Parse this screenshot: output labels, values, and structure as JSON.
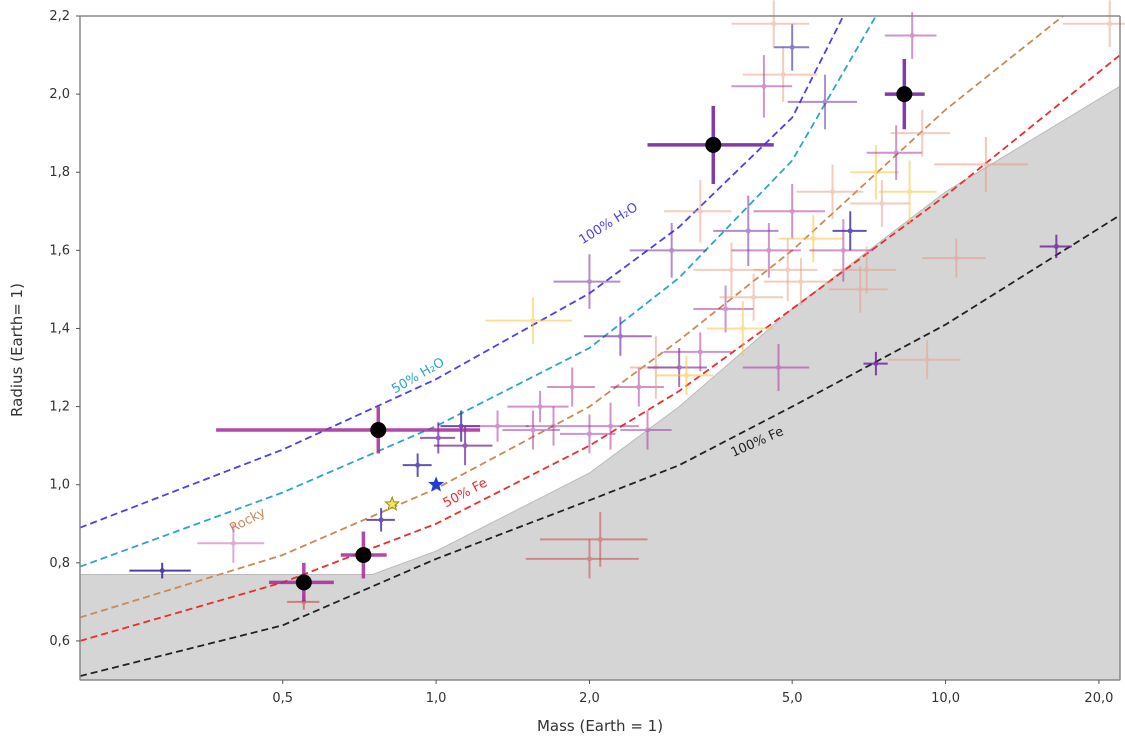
{
  "chart_data": {
    "type": "scatter",
    "xlabel": "Mass (Earth = 1)",
    "ylabel": "Radius (Earth= 1)",
    "xscale": "log",
    "xlim": [
      0.2,
      22
    ],
    "ylim": [
      0.5,
      2.2
    ],
    "xticks": [
      0.5,
      1.0,
      2.0,
      5.0,
      10.0,
      20.0
    ],
    "xtick_labels": [
      "0,5",
      "1,0",
      "2,0",
      "5,0",
      "10,0",
      "20,0"
    ],
    "yticks": [
      0.6,
      0.8,
      1.0,
      1.2,
      1.4,
      1.6,
      1.8,
      2.0,
      2.2
    ],
    "ytick_labels": [
      "0,6",
      "0,8",
      "1,0",
      "1,2",
      "1,4",
      "1,6",
      "1,8",
      "2,0",
      "2,2"
    ],
    "curves": [
      {
        "label": "100% H₂O",
        "color": "#4b3ff0",
        "points": [
          [
            0.2,
            0.89
          ],
          [
            0.5,
            1.09
          ],
          [
            1.0,
            1.27
          ],
          [
            2.0,
            1.49
          ],
          [
            3.0,
            1.66
          ],
          [
            5.0,
            1.94
          ],
          [
            6.3,
            2.2
          ]
        ],
        "label_at": [
          2.2,
          1.66
        ],
        "label_rot": -32
      },
      {
        "label": "50% H₂O",
        "color": "#2ba6c4",
        "points": [
          [
            0.2,
            0.79
          ],
          [
            0.5,
            0.98
          ],
          [
            1.0,
            1.15
          ],
          [
            2.0,
            1.35
          ],
          [
            3.0,
            1.53
          ],
          [
            5.0,
            1.83
          ],
          [
            7.3,
            2.2
          ]
        ],
        "label_at": [
          0.93,
          1.27
        ],
        "label_rot": -30
      },
      {
        "label": "Rocky",
        "color": "#c98a55",
        "points": [
          [
            0.2,
            0.66
          ],
          [
            0.5,
            0.82
          ],
          [
            1.0,
            0.99
          ],
          [
            2.0,
            1.2
          ],
          [
            3.0,
            1.37
          ],
          [
            5.0,
            1.6
          ],
          [
            10.0,
            1.96
          ],
          [
            17.0,
            2.2
          ]
        ],
        "label_at": [
          0.43,
          0.9
        ],
        "label_rot": -28
      },
      {
        "label": "50% Fe",
        "color": "#ef2b2b",
        "points": [
          [
            0.2,
            0.6
          ],
          [
            0.5,
            0.75
          ],
          [
            1.0,
            0.9
          ],
          [
            2.0,
            1.1
          ],
          [
            3.0,
            1.24
          ],
          [
            5.0,
            1.45
          ],
          [
            10.0,
            1.74
          ],
          [
            22.0,
            2.1
          ]
        ],
        "label_at": [
          1.15,
          0.97
        ],
        "label_rot": -28
      },
      {
        "label": "100% Fe",
        "color": "#222222",
        "points": [
          [
            0.2,
            0.51
          ],
          [
            0.5,
            0.64
          ],
          [
            1.0,
            0.81
          ],
          [
            2.0,
            0.96
          ],
          [
            3.0,
            1.05
          ],
          [
            5.0,
            1.2
          ],
          [
            10.0,
            1.41
          ],
          [
            22.0,
            1.69
          ]
        ],
        "label_at": [
          4.3,
          1.1
        ],
        "label_rot": -24
      }
    ],
    "shaded_region": {
      "color": "#d5d5d5",
      "upper_bound": [
        [
          0.2,
          0.77
        ],
        [
          0.75,
          0.77
        ],
        [
          1.0,
          0.83
        ],
        [
          2.0,
          1.03
        ],
        [
          3.0,
          1.2
        ],
        [
          5.0,
          1.45
        ],
        [
          10.0,
          1.75
        ],
        [
          22.0,
          2.02
        ]
      ]
    },
    "highlighted_points": [
      {
        "x": 0.55,
        "y": 0.75,
        "xerr": [
          0.08,
          0.08
        ],
        "yerr": [
          0.05,
          0.05
        ],
        "color": "#a52a9a"
      },
      {
        "x": 0.72,
        "y": 0.82,
        "xerr": [
          0.07,
          0.08
        ],
        "yerr": [
          0.06,
          0.06
        ],
        "color": "#a52a9a"
      },
      {
        "x": 0.77,
        "y": 1.14,
        "xerr": [
          0.4,
          0.45
        ],
        "yerr": [
          0.06,
          0.06
        ],
        "color": "#a52a9a"
      },
      {
        "x": 3.5,
        "y": 1.87,
        "xerr": [
          0.9,
          1.1
        ],
        "yerr": [
          0.1,
          0.1
        ],
        "color": "#6a1b9a"
      },
      {
        "x": 8.3,
        "y": 2.0,
        "xerr": [
          0.7,
          0.8
        ],
        "yerr": [
          0.09,
          0.09
        ],
        "color": "#6a1b9a"
      }
    ],
    "star_markers": [
      {
        "x": 0.82,
        "y": 0.95,
        "color": "#f3e55a",
        "stroke": "#9a8a10"
      },
      {
        "x": 1.0,
        "y": 1.0,
        "color": "#1f3fd6",
        "stroke": "#1f3fd6"
      }
    ],
    "data_points": [
      {
        "x": 0.29,
        "y": 0.78,
        "xe": 0.04,
        "ye": 0.02,
        "c": "#3e2aa6",
        "o": 0.9
      },
      {
        "x": 0.4,
        "y": 0.85,
        "xe": 0.06,
        "ye": 0.05,
        "c": "#c15aa6",
        "o": 0.5
      },
      {
        "x": 0.78,
        "y": 0.91,
        "xe": 0.05,
        "ye": 0.03,
        "c": "#3e2aa6",
        "o": 0.8
      },
      {
        "x": 0.92,
        "y": 1.05,
        "xe": 0.06,
        "ye": 0.03,
        "c": "#3e2aa6",
        "o": 0.8
      },
      {
        "x": 1.01,
        "y": 1.12,
        "xe": 0.08,
        "ye": 0.04,
        "c": "#6a1b9a",
        "o": 0.7
      },
      {
        "x": 1.12,
        "y": 1.15,
        "xe": 0.1,
        "ye": 0.04,
        "c": "#3e2aa6",
        "o": 0.8
      },
      {
        "x": 1.14,
        "y": 1.1,
        "xe": 0.15,
        "ye": 0.05,
        "c": "#6a1b9a",
        "o": 0.7
      },
      {
        "x": 1.32,
        "y": 1.15,
        "xe": 0.2,
        "ye": 0.04,
        "c": "#a52a9a",
        "o": 0.5
      },
      {
        "x": 1.55,
        "y": 1.14,
        "xe": 0.2,
        "ye": 0.05,
        "c": "#a52a9a",
        "o": 0.5
      },
      {
        "x": 1.6,
        "y": 1.2,
        "xe": 0.22,
        "ye": 0.04,
        "c": "#a52a9a",
        "o": 0.5
      },
      {
        "x": 1.7,
        "y": 1.15,
        "xe": 0.2,
        "ye": 0.05,
        "c": "#a52a9a",
        "o": 0.5
      },
      {
        "x": 1.85,
        "y": 1.25,
        "xe": 0.2,
        "ye": 0.05,
        "c": "#a52a9a",
        "o": 0.5
      },
      {
        "x": 2.0,
        "y": 1.13,
        "xe": 0.25,
        "ye": 0.05,
        "c": "#a52a9a",
        "o": 0.5
      },
      {
        "x": 2.2,
        "y": 1.15,
        "xe": 0.3,
        "ye": 0.06,
        "c": "#a52a9a",
        "o": 0.5
      },
      {
        "x": 2.3,
        "y": 1.38,
        "xe": 0.35,
        "ye": 0.05,
        "c": "#6a1b9a",
        "o": 0.6
      },
      {
        "x": 2.5,
        "y": 1.25,
        "xe": 0.3,
        "ye": 0.05,
        "c": "#a52a9a",
        "o": 0.5
      },
      {
        "x": 2.6,
        "y": 1.14,
        "xe": 0.3,
        "ye": 0.05,
        "c": "#a52a9a",
        "o": 0.5
      },
      {
        "x": 2.7,
        "y": 1.3,
        "xe": 0.3,
        "ye": 0.08,
        "c": "#e89a80",
        "o": 0.55
      },
      {
        "x": 3.0,
        "y": 1.3,
        "xe": 0.4,
        "ye": 0.05,
        "c": "#6a1b9a",
        "o": 0.6
      },
      {
        "x": 3.1,
        "y": 1.28,
        "xe": 0.4,
        "ye": 0.05,
        "c": "#f7c840",
        "o": 0.6
      },
      {
        "x": 3.3,
        "y": 1.34,
        "xe": 0.5,
        "ye": 0.05,
        "c": "#a52a9a",
        "o": 0.5
      },
      {
        "x": 2.0,
        "y": 1.52,
        "xe": 0.3,
        "ye": 0.07,
        "c": "#6a1b9a",
        "o": 0.5
      },
      {
        "x": 1.55,
        "y": 1.42,
        "xe": 0.3,
        "ye": 0.06,
        "c": "#f7c840",
        "o": 0.55
      },
      {
        "x": 2.9,
        "y": 1.6,
        "xe": 0.5,
        "ye": 0.07,
        "c": "#6a1b9a",
        "o": 0.5
      },
      {
        "x": 3.3,
        "y": 1.7,
        "xe": 0.5,
        "ye": 0.08,
        "c": "#e89a80",
        "o": 0.5
      },
      {
        "x": 3.7,
        "y": 1.45,
        "xe": 0.5,
        "ye": 0.06,
        "c": "#a52a9a",
        "o": 0.5
      },
      {
        "x": 3.8,
        "y": 1.55,
        "xe": 0.6,
        "ye": 0.07,
        "c": "#e89a80",
        "o": 0.5
      },
      {
        "x": 4.0,
        "y": 1.4,
        "xe": 0.6,
        "ye": 0.07,
        "c": "#f7c840",
        "o": 0.55
      },
      {
        "x": 4.1,
        "y": 1.65,
        "xe": 0.6,
        "ye": 0.09,
        "c": "#6a1b9a",
        "o": 0.5
      },
      {
        "x": 4.2,
        "y": 1.48,
        "xe": 0.6,
        "ye": 0.06,
        "c": "#e89a80",
        "o": 0.5
      },
      {
        "x": 4.5,
        "y": 1.6,
        "xe": 0.7,
        "ye": 0.07,
        "c": "#a52a9a",
        "o": 0.5
      },
      {
        "x": 4.7,
        "y": 1.3,
        "xe": 0.7,
        "ye": 0.06,
        "c": "#a52a9a",
        "o": 0.5
      },
      {
        "x": 4.9,
        "y": 1.55,
        "xe": 0.7,
        "ye": 0.08,
        "c": "#e89a80",
        "o": 0.5
      },
      {
        "x": 5.0,
        "y": 1.7,
        "xe": 0.8,
        "ye": 0.07,
        "c": "#a52a9a",
        "o": 0.5
      },
      {
        "x": 5.2,
        "y": 1.52,
        "xe": 0.8,
        "ye": 0.06,
        "c": "#e89a80",
        "o": 0.5
      },
      {
        "x": 5.5,
        "y": 1.63,
        "xe": 0.8,
        "ye": 0.06,
        "c": "#f7c840",
        "o": 0.55
      },
      {
        "x": 6.0,
        "y": 1.75,
        "xe": 0.9,
        "ye": 0.07,
        "c": "#e89a80",
        "o": 0.5
      },
      {
        "x": 6.3,
        "y": 1.6,
        "xe": 0.9,
        "ye": 0.08,
        "c": "#a52a9a",
        "o": 0.5
      },
      {
        "x": 6.5,
        "y": 1.65,
        "xe": 0.5,
        "ye": 0.05,
        "c": "#3e2aa6",
        "o": 0.8
      },
      {
        "x": 6.8,
        "y": 1.5,
        "xe": 0.9,
        "ye": 0.06,
        "c": "#e89a80",
        "o": 0.5
      },
      {
        "x": 7.0,
        "y": 1.55,
        "xe": 1.0,
        "ye": 0.06,
        "c": "#e89a80",
        "o": 0.5
      },
      {
        "x": 7.3,
        "y": 1.8,
        "xe": 0.8,
        "ye": 0.07,
        "c": "#f7c840",
        "o": 0.55
      },
      {
        "x": 7.5,
        "y": 1.72,
        "xe": 1.0,
        "ye": 0.06,
        "c": "#e89a80",
        "o": 0.5
      },
      {
        "x": 8.0,
        "y": 1.85,
        "xe": 1.0,
        "ye": 0.07,
        "c": "#a52a9a",
        "o": 0.5
      },
      {
        "x": 8.5,
        "y": 1.75,
        "xe": 1.1,
        "ye": 0.08,
        "c": "#f7c840",
        "o": 0.55
      },
      {
        "x": 9.0,
        "y": 1.9,
        "xe": 1.2,
        "ye": 0.06,
        "c": "#e89a80",
        "o": 0.5
      },
      {
        "x": 5.8,
        "y": 1.98,
        "xe": 0.9,
        "ye": 0.07,
        "c": "#6a1b9a",
        "o": 0.5
      },
      {
        "x": 4.8,
        "y": 2.05,
        "xe": 0.8,
        "ye": 0.07,
        "c": "#e89a80",
        "o": 0.5
      },
      {
        "x": 4.4,
        "y": 2.02,
        "xe": 0.6,
        "ye": 0.08,
        "c": "#a52a9a",
        "o": 0.5
      },
      {
        "x": 5.0,
        "y": 2.12,
        "xe": 0.4,
        "ye": 0.06,
        "c": "#3e2aa6",
        "o": 0.6
      },
      {
        "x": 12.0,
        "y": 1.82,
        "xe": 2.5,
        "ye": 0.07,
        "c": "#e89a80",
        "o": 0.55
      },
      {
        "x": 10.5,
        "y": 1.58,
        "xe": 1.5,
        "ye": 0.05,
        "c": "#e89a80",
        "o": 0.55
      },
      {
        "x": 7.3,
        "y": 1.31,
        "xe": 0.4,
        "ye": 0.03,
        "c": "#6a1b9a",
        "o": 0.8
      },
      {
        "x": 9.2,
        "y": 1.32,
        "xe": 1.5,
        "ye": 0.05,
        "c": "#e89a80",
        "o": 0.45
      },
      {
        "x": 2.1,
        "y": 0.86,
        "xe": 0.5,
        "ye": 0.07,
        "c": "#c84040",
        "o": 0.5
      },
      {
        "x": 2.0,
        "y": 0.81,
        "xe": 0.5,
        "ye": 0.05,
        "c": "#c84040",
        "o": 0.5
      },
      {
        "x": 16.5,
        "y": 1.61,
        "xe": 1.2,
        "ye": 0.03,
        "c": "#6a1b9a",
        "o": 0.8
      },
      {
        "x": 21.0,
        "y": 2.18,
        "xe": 4.0,
        "ye": 0.06,
        "c": "#e89a80",
        "o": 0.5
      },
      {
        "x": 8.6,
        "y": 2.15,
        "xe": 1.0,
        "ye": 0.06,
        "c": "#a52a9a",
        "o": 0.5
      },
      {
        "x": 4.6,
        "y": 2.18,
        "xe": 0.8,
        "ye": 0.06,
        "c": "#e89a80",
        "o": 0.5
      },
      {
        "x": 0.55,
        "y": 0.7,
        "xe": 0.04,
        "ye": 0.02,
        "c": "#c84040",
        "o": 0.6
      }
    ]
  }
}
